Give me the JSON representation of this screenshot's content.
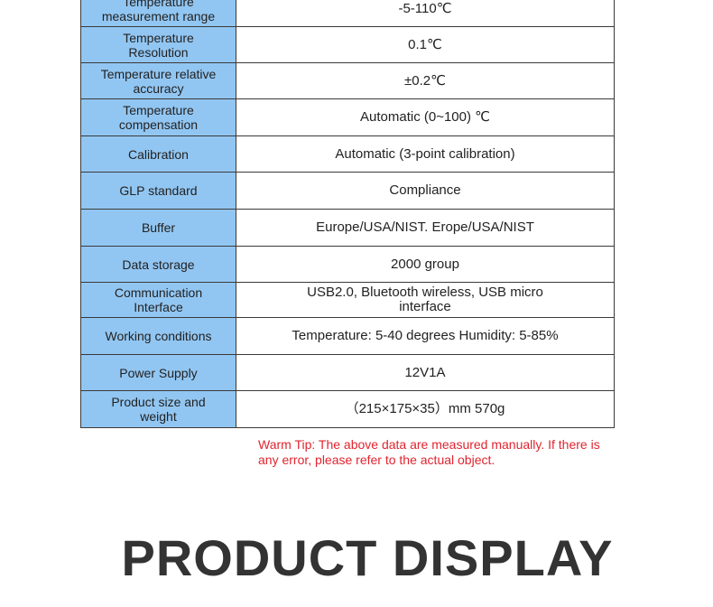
{
  "table": {
    "rows": [
      [
        "Temperature measurement range",
        "-5-110℃"
      ],
      [
        "Temperature Resolution",
        "0.1℃"
      ],
      [
        "Temperature relative accuracy",
        "±0.2℃"
      ],
      [
        "Temperature compensation",
        "Automatic (0~100) ℃"
      ],
      [
        "Calibration",
        "Automatic (3-point calibration)"
      ],
      [
        "GLP standard",
        "Compliance"
      ],
      [
        "Buffer",
        "Europe/USA/NIST. Erope/USA/NIST"
      ],
      [
        "Data storage",
        "2000 group"
      ],
      [
        "Communication Interface",
        "USB2.0, Bluetooth wireless, USB micro interface"
      ],
      [
        "Working conditions",
        "Temperature: 5-40 degrees Humidity: 5-85%"
      ],
      [
        "Power Supply",
        "12V1A"
      ],
      [
        "Product size and weight",
        "（215×175×35）mm 570g"
      ]
    ]
  },
  "warm_tip": "Warm Tip: The above data are measured manually. If there is any error, please refer to the actual object.",
  "section_title": "PRODUCT DISPLAY"
}
